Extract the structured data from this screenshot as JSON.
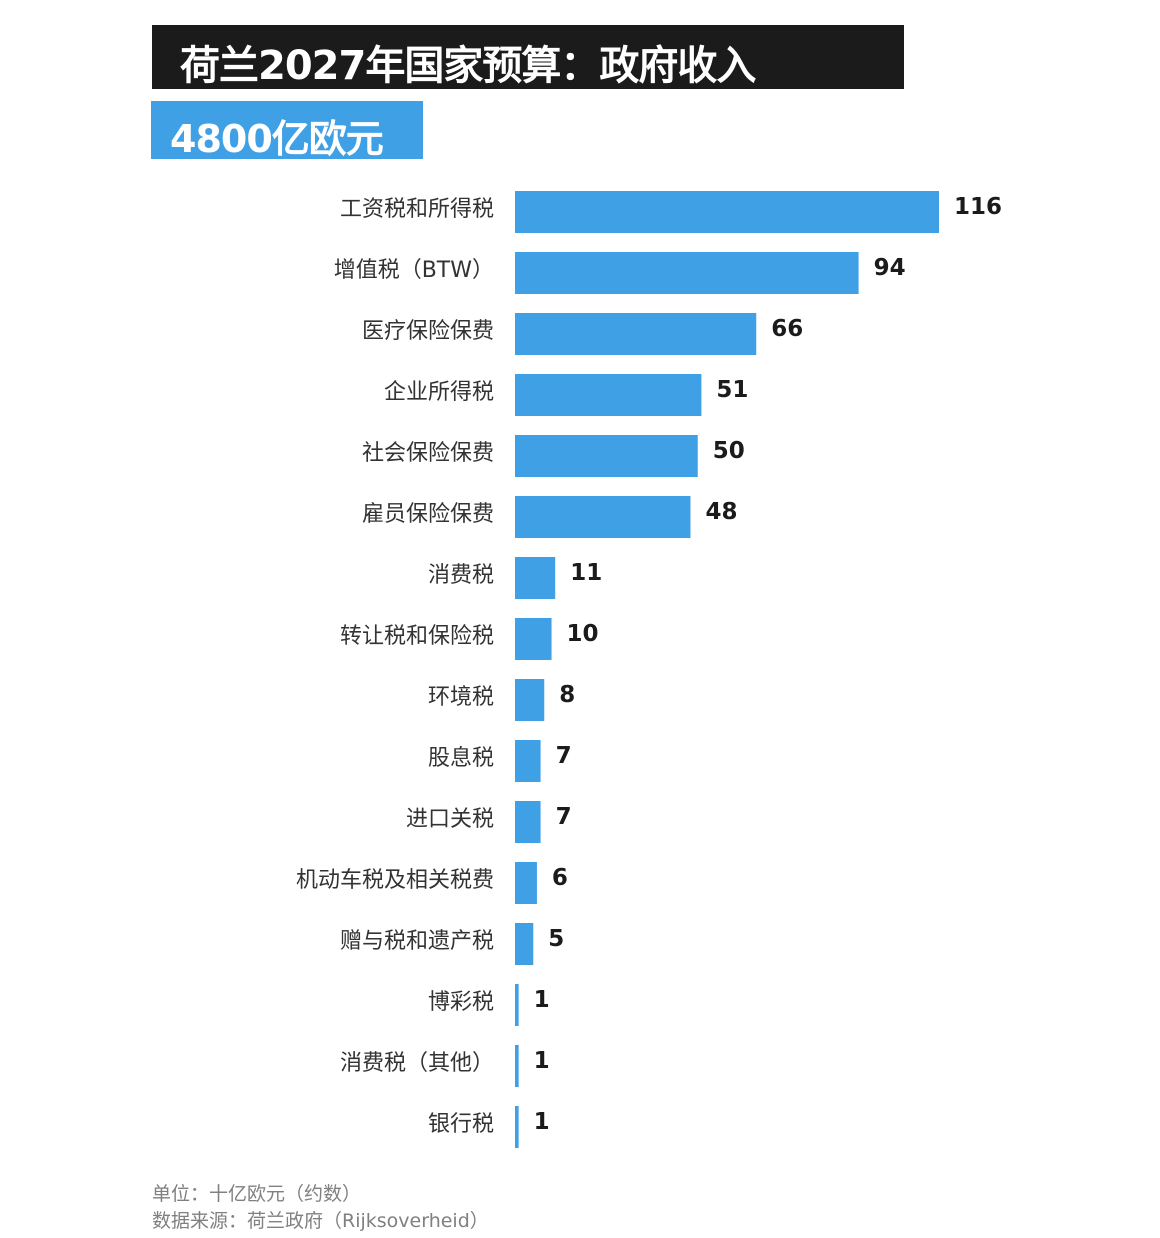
{
  "title": "荷兰2027年国家预算：政府收入",
  "subtitle": "4800亿欧元",
  "footer": {
    "unit": "单位：十亿欧元（约数）",
    "source": "数据来源：荷兰政府（Rijksoverheid）"
  },
  "colors": {
    "bar": "#40a0e6",
    "title_bg": "#1b1b1b",
    "subtitle_bg": "#40a0e6",
    "label": "#333333",
    "value": "#1b1b1b",
    "footer": "#808080"
  },
  "chart_data": {
    "type": "bar",
    "orientation": "horizontal",
    "categories": [
      "工资税和所得税",
      "增值税（BTW）",
      "医疗保险保费",
      "企业所得税",
      "社会保险保费",
      "雇员保险保费",
      "消费税",
      "转让税和保险税",
      "环境税",
      "股息税",
      "进口关税",
      "机动车税及相关税费",
      "赠与税和遗产税",
      "博彩税",
      "消费税（其他）",
      "银行税"
    ],
    "values": [
      116,
      94,
      66,
      51,
      50,
      48,
      11,
      10,
      8,
      7,
      7,
      6,
      5,
      1,
      1,
      1
    ],
    "value_labels": [
      "116",
      "94",
      "66",
      "51",
      "50",
      "48",
      "11",
      "10",
      "8",
      "7",
      "7",
      "6",
      "5",
      "1",
      "1",
      "1"
    ],
    "xlim": [
      0,
      116
    ],
    "grid": false,
    "axis_visible": false
  }
}
